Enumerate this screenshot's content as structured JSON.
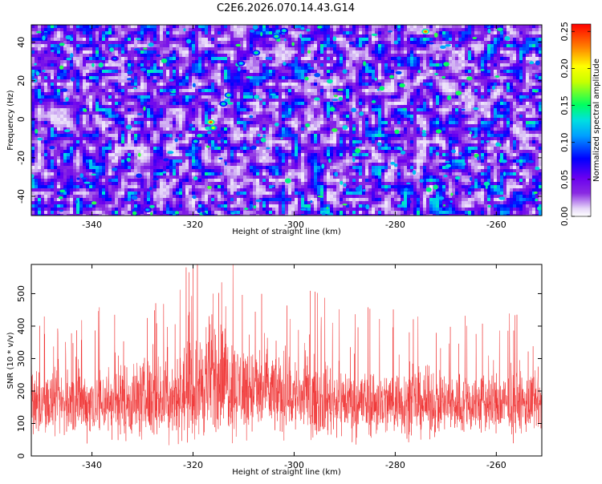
{
  "title": "C2E6.2026.070.14.43.G14",
  "chart_data": [
    {
      "type": "heatmap",
      "xlabel": "Height of straight line (km)",
      "ylabel": "Frequency (Hz)",
      "xlim": [
        -352,
        -251
      ],
      "ylim": [
        -50,
        49
      ],
      "x_ticks": [
        -340,
        -320,
        -300,
        -280,
        -260
      ],
      "y_ticks": [
        -40,
        -20,
        0,
        20,
        40
      ],
      "colorbar": {
        "label": "Normalized spectral amplitude",
        "range": [
          0,
          0.26
        ],
        "ticks": [
          0.0,
          0.05,
          0.1,
          0.15,
          0.2,
          0.25
        ],
        "tick_labels": [
          "0.00",
          "0.05",
          "0.10",
          "0.15",
          "0.20",
          "0.25"
        ]
      },
      "features": [
        {
          "x": -316.5,
          "y": -1.5,
          "amplitude": 0.25
        },
        {
          "x": -316.0,
          "y": -4.5,
          "amplitude": 0.19
        },
        {
          "x": -313.0,
          "y": 12.5,
          "amplitude": 0.16
        },
        {
          "x": -314.0,
          "y": 8.0,
          "amplitude": 0.14
        },
        {
          "x": -310.5,
          "y": 29.0,
          "amplitude": 0.13
        },
        {
          "x": -307.5,
          "y": 34.5,
          "amplitude": 0.15
        },
        {
          "x": -303.5,
          "y": 43.0,
          "amplitude": 0.16
        },
        {
          "x": -302.0,
          "y": 46.0,
          "amplitude": 0.14
        },
        {
          "x": -274.0,
          "y": 45.5,
          "amplitude": 0.24
        },
        {
          "x": -319.5,
          "y": -11.5,
          "amplitude": 0.14
        },
        {
          "x": -329.0,
          "y": -47.0,
          "amplitude": 0.12
        },
        {
          "x": -335.5,
          "y": 31.5,
          "amplitude": 0.1
        }
      ]
    },
    {
      "type": "line",
      "xlabel": "Height of straight line (km)",
      "ylabel": "SNR (10 * v/v)",
      "xlim": [
        -352,
        -251
      ],
      "ylim": [
        0,
        590
      ],
      "x_ticks": [
        -340,
        -320,
        -300,
        -280,
        -260
      ],
      "y_ticks": [
        0,
        100,
        200,
        300,
        400,
        500
      ],
      "series": [
        {
          "color": "#f03434",
          "profile_x": [
            -350,
            -345,
            -340,
            -335,
            -330,
            -325,
            -320,
            -317,
            -315,
            -312,
            -308,
            -304,
            -300,
            -295,
            -290,
            -285,
            -280,
            -275,
            -270,
            -265,
            -260,
            -255,
            -252
          ],
          "center": [
            160,
            160,
            165,
            170,
            175,
            180,
            195,
            240,
            250,
            215,
            200,
            195,
            185,
            175,
            170,
            165,
            165,
            165,
            160,
            160,
            160,
            160,
            160
          ],
          "spread": [
            130,
            130,
            140,
            150,
            160,
            170,
            190,
            250,
            240,
            200,
            180,
            170,
            160,
            150,
            140,
            140,
            135,
            135,
            130,
            130,
            130,
            125,
            125
          ]
        }
      ]
    }
  ]
}
